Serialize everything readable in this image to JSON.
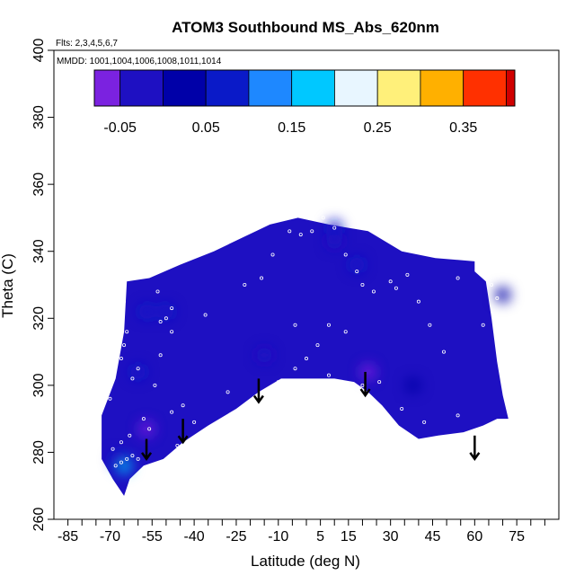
{
  "chart_data": {
    "type": "heatmap",
    "title": "ATOM3 Southbound MS_Abs_620nm",
    "flights_note": "Flts: 2,3,4,5,6,7",
    "dates_note": "MMDD: 1001,1004,1006,1008,1011,1014",
    "xlabel": "Latitude (deg N)",
    "ylabel": "Theta (C)",
    "xlim": [
      -90,
      90
    ],
    "ylim": [
      260,
      400
    ],
    "x_tick_values": [
      -85,
      -70,
      -55,
      -40,
      -25,
      -10,
      5,
      15,
      30,
      45,
      60,
      75
    ],
    "x_tick_labels": [
      "-85",
      "-70",
      "-55",
      "-40",
      "-25",
      "-10",
      "5",
      "15",
      "30",
      "45",
      "60",
      "75"
    ],
    "x_minor_ticks": [
      -80,
      -75,
      -65,
      -60,
      -50,
      -45,
      -35,
      -30,
      -20,
      -15,
      -5,
      0,
      10,
      20,
      25,
      35,
      40,
      50,
      55,
      65,
      70,
      80,
      85
    ],
    "y_ticks": [
      260,
      280,
      300,
      320,
      340,
      360,
      380,
      400
    ],
    "y_tick_labels": [
      "260",
      "280",
      "300",
      "320",
      "340",
      "360",
      "380",
      "400"
    ],
    "colorbar": {
      "ticks": [
        -0.05,
        0.05,
        0.15,
        0.25,
        0.35
      ],
      "tick_labels": [
        "-0.05",
        "0.05",
        "0.15",
        "0.25",
        "0.35"
      ],
      "range": [
        -0.08,
        0.41
      ],
      "bins": [
        -0.08,
        -0.05,
        0.0,
        0.05,
        0.1,
        0.15,
        0.2,
        0.25,
        0.3,
        0.35,
        0.4,
        0.41
      ],
      "colors": [
        "#7b22e0",
        "#1e10c2",
        "#0000a8",
        "#0a1ac8",
        "#1e88ff",
        "#00c8ff",
        "#e8f6ff",
        "#fff07a",
        "#ffb000",
        "#ff3000",
        "#d00000",
        "#a01010"
      ]
    },
    "field_base_value": -0.01,
    "field_boundary": [
      [
        -73,
        278
      ],
      [
        -73,
        291
      ],
      [
        -68,
        302
      ],
      [
        -65,
        316
      ],
      [
        -64,
        331
      ],
      [
        -56,
        332
      ],
      [
        -45,
        336
      ],
      [
        -33,
        340
      ],
      [
        -23,
        344
      ],
      [
        -13,
        348
      ],
      [
        -3,
        350
      ],
      [
        8,
        348
      ],
      [
        22,
        346
      ],
      [
        34,
        340
      ],
      [
        46,
        338
      ],
      [
        60,
        337
      ],
      [
        60,
        334
      ],
      [
        64,
        331
      ],
      [
        66,
        320
      ],
      [
        68,
        307
      ],
      [
        70,
        297
      ],
      [
        72,
        290
      ],
      [
        68,
        290
      ],
      [
        63,
        288
      ],
      [
        56,
        286
      ],
      [
        47,
        285
      ],
      [
        40,
        284
      ],
      [
        33,
        288
      ],
      [
        27,
        294
      ],
      [
        22,
        298
      ],
      [
        17,
        301
      ],
      [
        10,
        302
      ],
      [
        0,
        302
      ],
      [
        -9,
        302
      ],
      [
        -17,
        298
      ],
      [
        -25,
        293
      ],
      [
        -35,
        288
      ],
      [
        -44,
        283
      ],
      [
        -51,
        278
      ],
      [
        -58,
        276
      ],
      [
        -63,
        272
      ],
      [
        -65,
        267
      ],
      [
        -69,
        272
      ]
    ],
    "field_highlights": [
      {
        "lat": -65,
        "theta": 276,
        "value": 0.15
      },
      {
        "lat": -67,
        "theta": 278,
        "value": 0.08
      },
      {
        "lat": -57,
        "theta": 322,
        "value": 0.06
      },
      {
        "lat": -50,
        "theta": 322,
        "value": 0.05
      },
      {
        "lat": -60,
        "theta": 304,
        "value": 0.06
      },
      {
        "lat": 10,
        "theta": 347,
        "value": 0.07
      },
      {
        "lat": 18,
        "theta": 336,
        "value": 0.05
      },
      {
        "lat": 70,
        "theta": 327,
        "value": 0.04
      },
      {
        "lat": 38,
        "theta": 300,
        "value": 0.03
      },
      {
        "lat": -57,
        "theta": 287,
        "value": -0.06
      },
      {
        "lat": -15,
        "theta": 309,
        "value": -0.05
      },
      {
        "lat": 22,
        "theta": 304,
        "value": -0.06
      },
      {
        "lat": 10,
        "theta": 343,
        "value": -0.05
      }
    ],
    "sample_points": [
      [
        -68,
        276
      ],
      [
        -66,
        277
      ],
      [
        -64,
        278
      ],
      [
        -62,
        279
      ],
      [
        -60,
        278
      ],
      [
        -69,
        281
      ],
      [
        -66,
        283
      ],
      [
        -63,
        285
      ],
      [
        -70,
        296
      ],
      [
        -66,
        308
      ],
      [
        -65,
        312
      ],
      [
        -64,
        316
      ],
      [
        -66,
        322
      ],
      [
        -65,
        325
      ],
      [
        -62,
        302
      ],
      [
        -60,
        305
      ],
      [
        -58,
        290
      ],
      [
        -56,
        287
      ],
      [
        -54,
        300
      ],
      [
        -52,
        309
      ],
      [
        -52,
        319
      ],
      [
        -50,
        320
      ],
      [
        -48,
        316
      ],
      [
        -53,
        328
      ],
      [
        -48,
        323
      ],
      [
        -46,
        282
      ],
      [
        -44,
        294
      ],
      [
        -36,
        321
      ],
      [
        -28,
        298
      ],
      [
        -22,
        330
      ],
      [
        -16,
        332
      ],
      [
        -12,
        339
      ],
      [
        -6,
        346
      ],
      [
        -2,
        345
      ],
      [
        2,
        346
      ],
      [
        6,
        350
      ],
      [
        10,
        347
      ],
      [
        14,
        339
      ],
      [
        18,
        334
      ],
      [
        20,
        330
      ],
      [
        24,
        328
      ],
      [
        30,
        331
      ],
      [
        32,
        329
      ],
      [
        36,
        333
      ],
      [
        40,
        325
      ],
      [
        44,
        318
      ],
      [
        49,
        310
      ],
      [
        54,
        332
      ],
      [
        58,
        339
      ],
      [
        66,
        330
      ],
      [
        68,
        326
      ],
      [
        63,
        318
      ],
      [
        54,
        291
      ],
      [
        42,
        289
      ],
      [
        34,
        293
      ],
      [
        26,
        301
      ],
      [
        20,
        300
      ],
      [
        14,
        298
      ],
      [
        8,
        303
      ],
      [
        4,
        312
      ],
      [
        0,
        308
      ],
      [
        -4,
        305
      ],
      [
        -10,
        301
      ],
      [
        -19,
        290
      ],
      [
        -26,
        286
      ],
      [
        -34,
        287
      ],
      [
        -40,
        289
      ],
      [
        -48,
        292
      ],
      [
        -4,
        318
      ],
      [
        8,
        318
      ],
      [
        14,
        316
      ]
    ],
    "arrows": [
      {
        "lat": -57,
        "top": 284,
        "tip": 278
      },
      {
        "lat": -44,
        "top": 290,
        "tip": 283
      },
      {
        "lat": -17,
        "top": 302,
        "tip": 295
      },
      {
        "lat": 21,
        "top": 304,
        "tip": 297
      },
      {
        "lat": 60,
        "top": 285,
        "tip": 278
      }
    ]
  }
}
